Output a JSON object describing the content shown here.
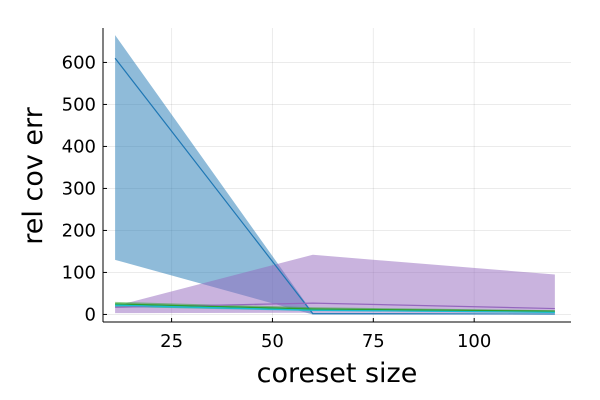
{
  "chart_data": {
    "type": "area",
    "xlabel": "coreset size",
    "ylabel": "rel cov err",
    "xlim": [
      8,
      124
    ],
    "ylim": [
      -18,
      682
    ],
    "xticks": [
      25,
      50,
      75,
      100
    ],
    "yticks": [
      0,
      100,
      200,
      300,
      400,
      500,
      600
    ],
    "grid": true,
    "legend": "none",
    "series": [
      {
        "color": "#1f77b4",
        "x": [
          11,
          60,
          120
        ],
        "mean": [
          610,
          2,
          1
        ],
        "lower": [
          130,
          0,
          0
        ],
        "upper": [
          665,
          4,
          2
        ]
      },
      {
        "color": "#9467bd",
        "x": [
          11,
          60,
          120
        ],
        "mean": [
          17,
          27,
          14
        ],
        "lower": [
          3,
          4,
          3
        ],
        "upper": [
          20,
          142,
          95
        ]
      },
      {
        "color": "#2ca02c",
        "x": [
          11,
          60,
          120
        ],
        "mean": [
          25,
          13,
          8
        ],
        "lower": [
          18,
          9,
          5
        ],
        "upper": [
          30,
          17,
          10
        ]
      },
      {
        "color": "#17becf",
        "x": [
          11,
          60,
          120
        ],
        "mean": [
          22,
          10,
          5
        ],
        "lower": [
          18,
          8,
          4
        ],
        "upper": [
          25,
          12,
          6
        ]
      }
    ]
  }
}
